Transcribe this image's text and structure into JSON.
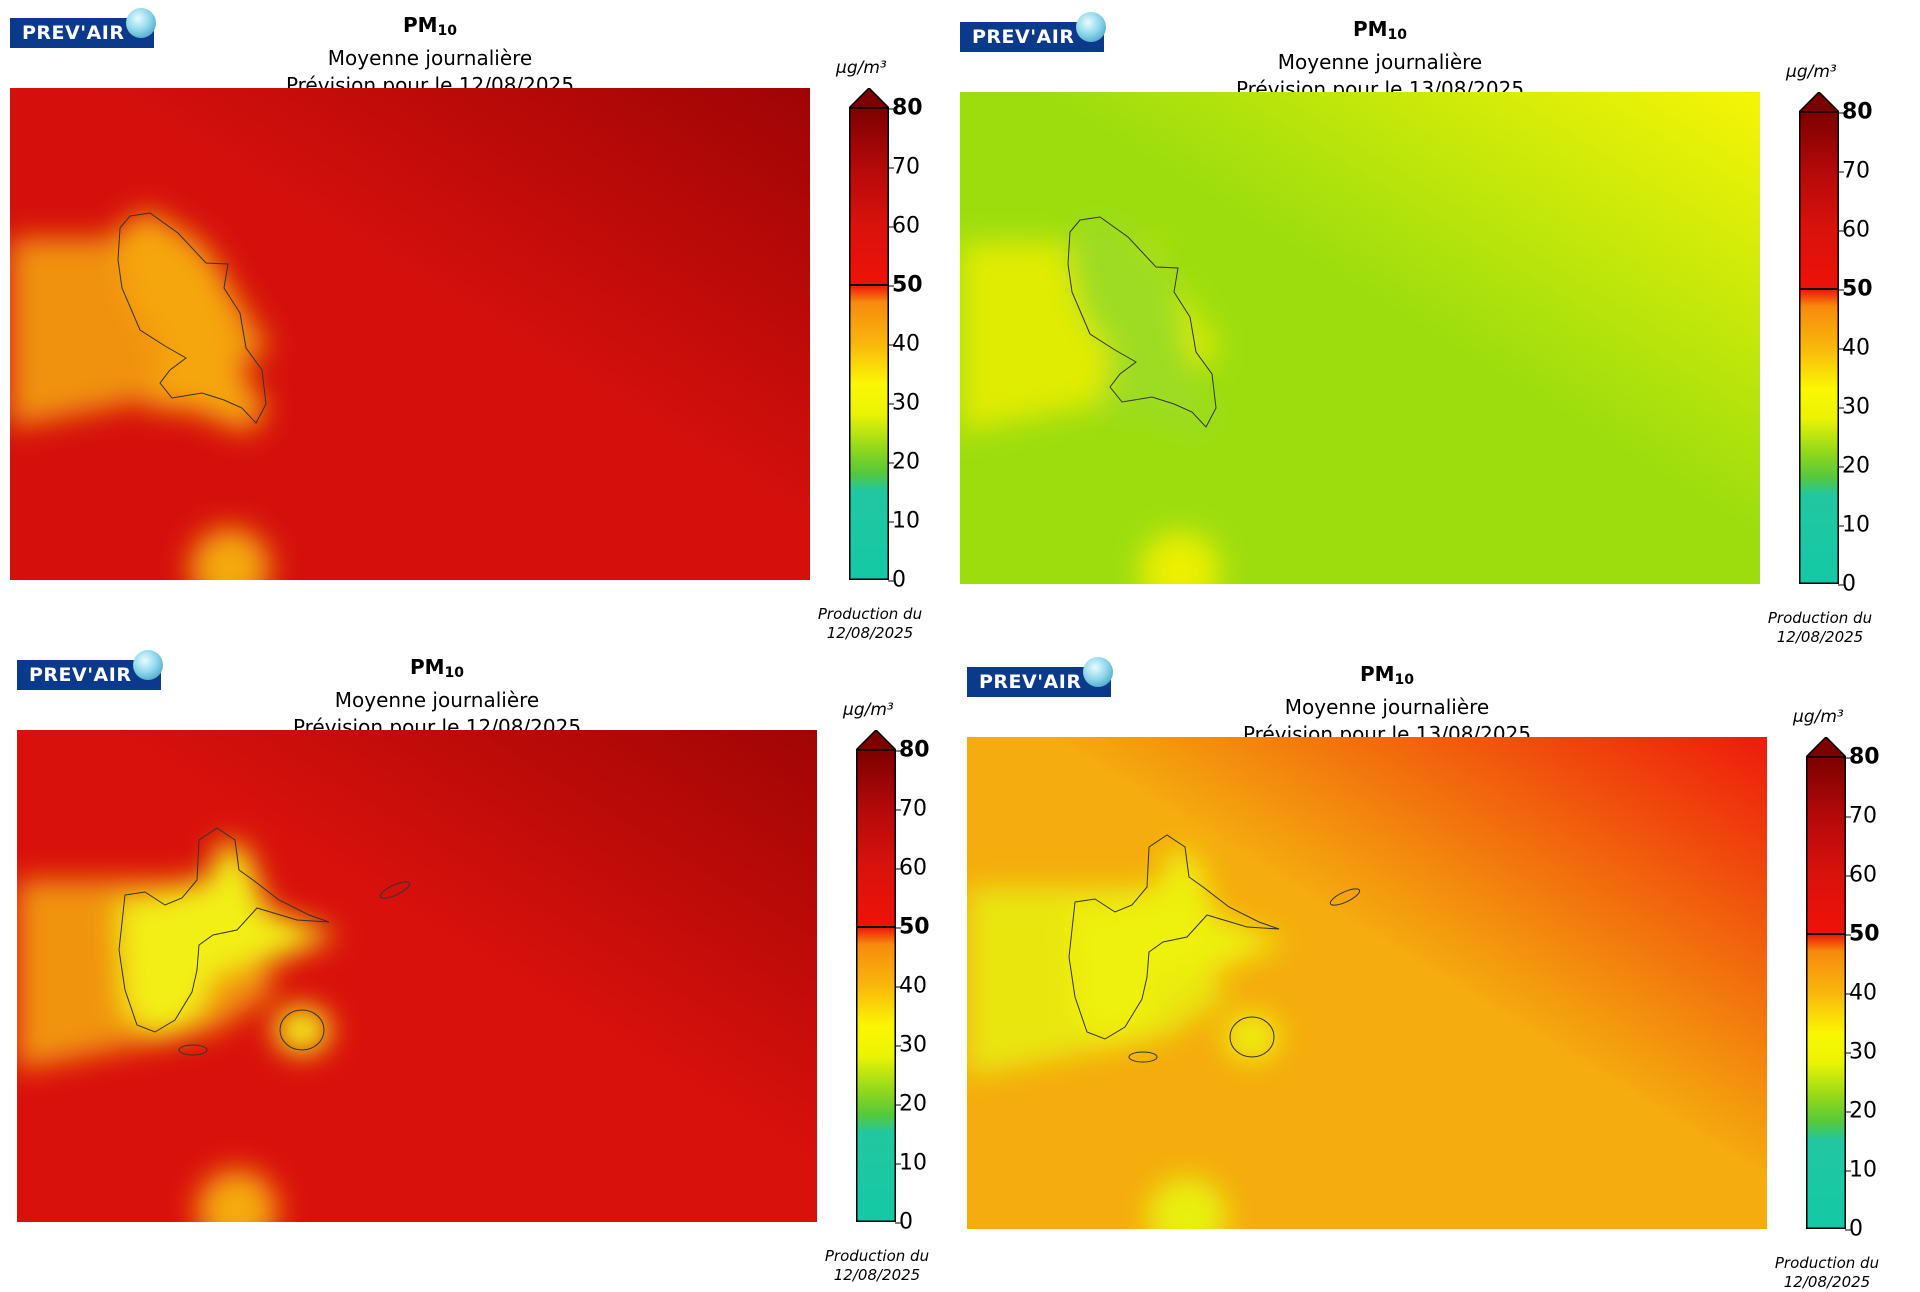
{
  "logo_text": "PREV'AIR",
  "panels": [
    {
      "pollutant": "PM",
      "pollutant_sub": "10",
      "subtitle": "Moyenne journalière",
      "forecast": "Prévision pour le 12/08/2025",
      "unit": "µg/m³",
      "production_line1": "Production du",
      "production_line2": "12/08/2025",
      "region": "Martinique",
      "colors": {
        "base": "#d5100c",
        "dark": "#9f0405",
        "island": "#f6a610",
        "plume": "#f4a90c"
      }
    },
    {
      "pollutant": "PM",
      "pollutant_sub": "10",
      "subtitle": "Moyenne journalière",
      "forecast": "Prévision pour le 13/08/2025",
      "unit": "µg/m³",
      "production_line1": "Production du",
      "production_line2": "12/08/2025",
      "region": "Martinique",
      "colors": {
        "base": "#9ddd0e",
        "dark": "#f7f505",
        "island": "#9ddc20",
        "plume": "#ecef06"
      }
    },
    {
      "pollutant": "PM",
      "pollutant_sub": "10",
      "subtitle": "Moyenne journalière",
      "forecast": "Prévision pour le 12/08/2025",
      "unit": "µg/m³",
      "production_line1": "Production du",
      "production_line2": "12/08/2025",
      "region": "Guadeloupe",
      "colors": {
        "base": "#d9110c",
        "dark": "#a00505",
        "island": "#f2ef18",
        "plume": "#f5aa0c"
      }
    },
    {
      "pollutant": "PM",
      "pollutant_sub": "10",
      "subtitle": "Moyenne journalière",
      "forecast": "Prévision pour le 13/08/2025",
      "unit": "µg/m³",
      "production_line1": "Production du",
      "production_line2": "12/08/2025",
      "region": "Guadeloupe",
      "colors": {
        "base": "#f5ac0e",
        "dark": "#ee1a0c",
        "island": "#eef010",
        "plume": "#e8f010"
      }
    }
  ],
  "colorbar": {
    "ticks": [
      {
        "value": 0,
        "label": "0"
      },
      {
        "value": 10,
        "label": "10"
      },
      {
        "value": 20,
        "label": "20"
      },
      {
        "value": 30,
        "label": "30"
      },
      {
        "value": 40,
        "label": "40"
      },
      {
        "value": 50,
        "label": "50"
      },
      {
        "value": 60,
        "label": "60"
      },
      {
        "value": 70,
        "label": "70"
      },
      {
        "value": 80,
        "label": "80"
      }
    ],
    "threshold": 50,
    "min": 0,
    "max": 80,
    "stops": [
      {
        "value": 0,
        "color": "#14c9a6"
      },
      {
        "value": 15,
        "color": "#21c7a0"
      },
      {
        "value": 18,
        "color": "#55c83c"
      },
      {
        "value": 22,
        "color": "#8fd71c"
      },
      {
        "value": 28,
        "color": "#eaf304"
      },
      {
        "value": 33,
        "color": "#fbf702"
      },
      {
        "value": 40,
        "color": "#f9b70c"
      },
      {
        "value": 47,
        "color": "#f78a0c"
      },
      {
        "value": 50,
        "color": "#ee1208"
      },
      {
        "value": 60,
        "color": "#d9120c"
      },
      {
        "value": 70,
        "color": "#b4090a"
      },
      {
        "value": 80,
        "color": "#7d0000"
      }
    ]
  }
}
